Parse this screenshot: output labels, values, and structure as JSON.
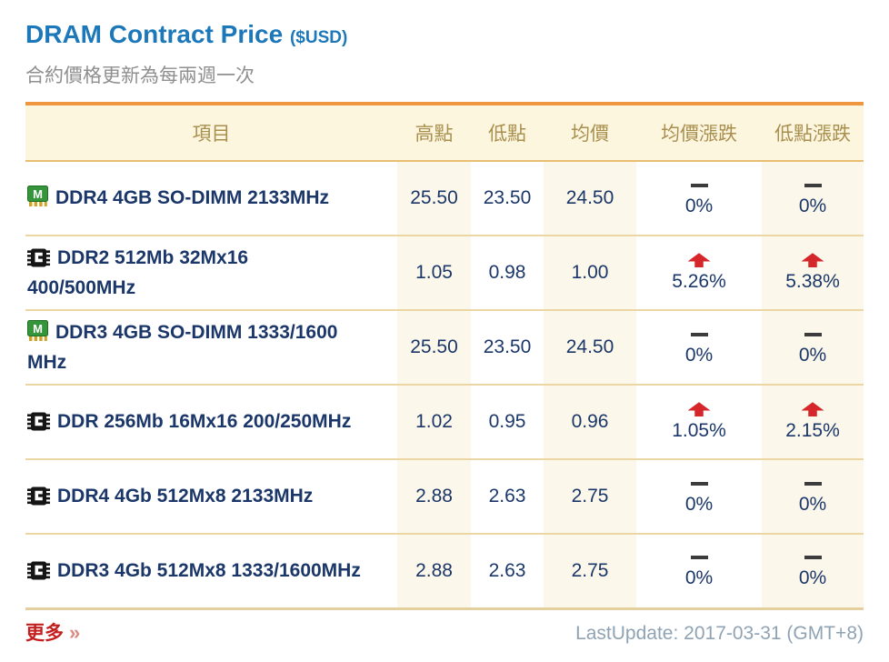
{
  "header": {
    "title": "DRAM Contract Price",
    "currency_note": "($USD)",
    "subtitle": "合約價格更新為每兩週一次"
  },
  "table": {
    "columns": [
      "項目",
      "高點",
      "低點",
      "均價",
      "均價漲跌",
      "低點漲跌"
    ],
    "rows": [
      {
        "icon": "module-icon",
        "name": "DDR4 4GB SO-DIMM 2133MHz",
        "high": "25.50",
        "low": "23.50",
        "avg": "24.50",
        "avg_change": {
          "direction": "flat",
          "percent": "0%"
        },
        "low_change": {
          "direction": "flat",
          "percent": "0%"
        }
      },
      {
        "icon": "chip-icon",
        "name": "DDR2 512Mb 32Mx16 400/500MHz",
        "high": "1.05",
        "low": "0.98",
        "avg": "1.00",
        "avg_change": {
          "direction": "up",
          "percent": "5.26%"
        },
        "low_change": {
          "direction": "up",
          "percent": "5.38%"
        }
      },
      {
        "icon": "module-icon",
        "name": "DDR3 4GB SO-DIMM 1333/1600 MHz",
        "high": "25.50",
        "low": "23.50",
        "avg": "24.50",
        "avg_change": {
          "direction": "flat",
          "percent": "0%"
        },
        "low_change": {
          "direction": "flat",
          "percent": "0%"
        }
      },
      {
        "icon": "chip-icon",
        "name": "DDR 256Mb 16Mx16 200/250MHz",
        "high": "1.02",
        "low": "0.95",
        "avg": "0.96",
        "avg_change": {
          "direction": "up",
          "percent": "1.05%"
        },
        "low_change": {
          "direction": "up",
          "percent": "2.15%"
        }
      },
      {
        "icon": "chip-icon",
        "name": "DDR4 4Gb 512Mx8 2133MHz",
        "high": "2.88",
        "low": "2.63",
        "avg": "2.75",
        "avg_change": {
          "direction": "flat",
          "percent": "0%"
        },
        "low_change": {
          "direction": "flat",
          "percent": "0%"
        }
      },
      {
        "icon": "chip-icon",
        "name": "DDR3 4Gb 512Mx8 1333/1600MHz",
        "high": "2.88",
        "low": "2.63",
        "avg": "2.75",
        "avg_change": {
          "direction": "flat",
          "percent": "0%"
        },
        "low_change": {
          "direction": "flat",
          "percent": "0%"
        }
      }
    ]
  },
  "footer": {
    "more_label": "更多",
    "more_chevron": "»",
    "last_update": "LastUpdate: 2017-03-31 (GMT+8)"
  },
  "colors": {
    "title_blue": "#1c78b8",
    "navy_text": "#1b3769",
    "header_gold_text": "#a88f4e",
    "header_bg": "#fdf6df",
    "cream_column_bg": "#fbf7ea",
    "orange_top_border": "#ef9740",
    "row_separator": "#ebd6a4",
    "up_arrow_red": "#d5262b",
    "flat_dash": "#3c3c3c",
    "more_link_red": "#c41f1f",
    "last_update_gray": "#8fa3b4"
  }
}
